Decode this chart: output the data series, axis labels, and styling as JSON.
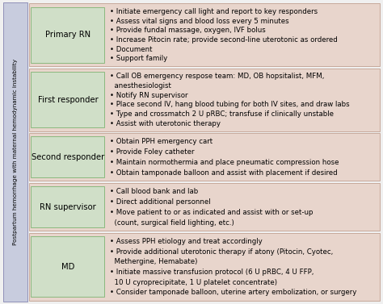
{
  "title": "Postpartum hemorrhage with maternal hemodynamic instability",
  "roles": [
    "Primary RN",
    "First responder",
    "Second responder",
    "RN supervisor",
    "MD"
  ],
  "role_box_color": "#d0dfc8",
  "role_box_edge_color": "#8ab87e",
  "row_bg_color": "#e8d5cc",
  "row_border_color": "#c0a090",
  "bg_color": "#f0f0f0",
  "left_label_color": "#c8ccde",
  "left_label_edge": "#9090b8",
  "bullet_texts": [
    [
      "• Initiate emergency call light and report to key responders",
      "• Assess vital signs and blood loss every 5 minutes",
      "• Provide fundal massage, oxygen, IVF bolus",
      "• Increase Pitocin rate; provide second-line uterotonic as ordered",
      "• Document",
      "• Support family"
    ],
    [
      "• Call OB emergency respose team: MD, OB hopsitalist, MFM,",
      "  anesthesiologist",
      "• Notify RN supervisor",
      "• Place second IV, hang blood tubing for both IV sites, and draw labs",
      "• Type and crossmatch 2 U pRBC; transfuse if clinically unstable",
      "• Assist with uterotonic therapy"
    ],
    [
      "• Obtain PPH emergency cart",
      "• Provide Foley catheter",
      "• Maintain normothermia and place pneumatic compression hose",
      "• Obtain tamponade balloon and assist with placement if desired"
    ],
    [
      "• Call blood bank and lab",
      "• Direct additional personnel",
      "• Move patient to or as indicated and assist with or set-up",
      "  (count, surgical field lighting, etc.)"
    ],
    [
      "• Assess PPH etiology and treat accordingly",
      "• Provide additional uterotonic therapy if atony (Pitocin, Cyotec,",
      "  Methergine, Hemabate)",
      "• Initiate massive transfusion protocol (6 U pRBC, 4 U FFP,",
      "  10 U cyroprecipitate, 1 U platelet concentrate)",
      "• Consider tamponade balloon, uterine artery embolization, or surgery"
    ]
  ],
  "row_heights": [
    1.3,
    1.3,
    1.0,
    1.0,
    1.4
  ],
  "font_size": 6.2,
  "role_font_size": 7.2
}
